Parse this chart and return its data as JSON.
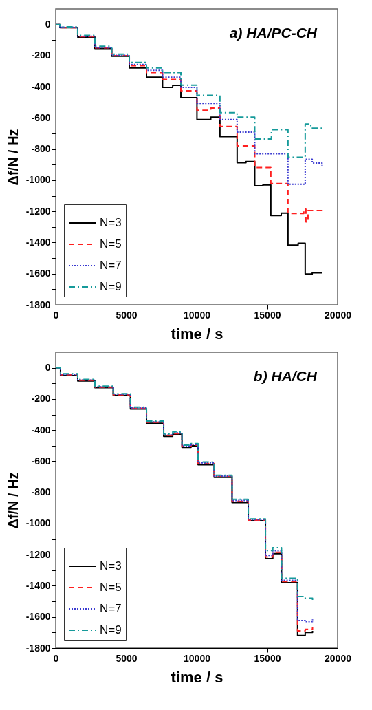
{
  "chart_data": [
    {
      "type": "step",
      "title": "a) HA/PC-CH",
      "xlabel": "time / s",
      "ylabel": "Δf/N / Hz",
      "xlim": [
        0,
        20000
      ],
      "xticks": [
        0,
        {
          "value": 2500,
          "label": null
        },
        5000,
        {
          "value": 7500,
          "label": null
        },
        10000,
        {
          "value": 12500,
          "label": null
        },
        15000,
        {
          "value": 17500,
          "label": null
        },
        20000
      ],
      "ylim": [
        -1800,
        100
      ],
      "yticks": [
        0,
        {
          "value": -100,
          "label": null
        },
        -200,
        {
          "value": -300,
          "label": null
        },
        -400,
        {
          "value": -500,
          "label": null
        },
        -600,
        {
          "value": -700,
          "label": null
        },
        -800,
        {
          "value": -900,
          "label": null
        },
        -1000,
        {
          "value": -1100,
          "label": null
        },
        -1200,
        {
          "value": -1300,
          "label": null
        },
        -1400,
        {
          "value": -1500,
          "label": null
        },
        -1600,
        {
          "value": -1700,
          "label": null
        },
        -1800
      ],
      "grid": false,
      "legend": "bottom left",
      "marker": "none",
      "series": [
        {
          "name": "N=3",
          "color": "#000000",
          "line_style": "solid",
          "x": [
            0,
            300,
            1560,
            2780,
            3970,
            5220,
            6440,
            7580,
            8300,
            8880,
            10020,
            11000,
            11650,
            12870,
            13500,
            14120,
            14700,
            15260,
            16000,
            16480,
            17200,
            17700,
            18200,
            18900
          ],
          "values": [
            0,
            -20,
            -81,
            -154,
            -204,
            -279,
            -338,
            -404,
            -390,
            -470,
            -610,
            -595,
            -720,
            -888,
            -880,
            -1036,
            -1030,
            -1227,
            -1211,
            -1417,
            -1405,
            -1602,
            -1595,
            -1595
          ]
        },
        {
          "name": "N=5",
          "color": "#ff2020",
          "line_style": "dashed",
          "x": [
            0,
            300,
            1560,
            2780,
            3970,
            5220,
            6440,
            7580,
            8880,
            10020,
            11000,
            11650,
            12870,
            14120,
            15260,
            16480,
            17600,
            17750,
            17900,
            18900
          ],
          "values": [
            0,
            -20,
            -78,
            -150,
            -200,
            -265,
            -309,
            -353,
            -426,
            -551,
            -536,
            -654,
            -779,
            -919,
            -1021,
            -1213,
            -1186,
            -1268,
            -1195,
            -1200
          ]
        },
        {
          "name": "N=7",
          "color": "#3a3ad0",
          "line_style": "dotted",
          "x": [
            0,
            300,
            1560,
            2780,
            3970,
            5220,
            6440,
            7580,
            8880,
            10020,
            11650,
            12870,
            14120,
            16480,
            17700,
            18200,
            18900
          ],
          "values": [
            0,
            -18,
            -76,
            -148,
            -198,
            -257,
            -294,
            -338,
            -404,
            -507,
            -610,
            -691,
            -830,
            -1026,
            -866,
            -890,
            -910
          ]
        },
        {
          "name": "N=9",
          "color": "#169a9a",
          "line_style": "dashdot",
          "x": [
            0,
            300,
            1560,
            2780,
            3970,
            5220,
            6440,
            7580,
            8880,
            10020,
            11650,
            12870,
            14120,
            15300,
            16480,
            17700,
            18100,
            18900
          ],
          "values": [
            0,
            -15,
            -70,
            -140,
            -190,
            -243,
            -279,
            -309,
            -389,
            -455,
            -566,
            -595,
            -735,
            -676,
            -852,
            -639,
            -665,
            -676
          ]
        }
      ]
    },
    {
      "type": "step",
      "title": "b) HA/CH",
      "xlabel": "time / s",
      "ylabel": "Δf/N / Hz",
      "xlim": [
        0,
        20000
      ],
      "xticks": [
        0,
        {
          "value": 2500,
          "label": null
        },
        5000,
        {
          "value": 7500,
          "label": null
        },
        10000,
        {
          "value": 12500,
          "label": null
        },
        15000,
        {
          "value": 17500,
          "label": null
        },
        20000
      ],
      "ylim": [
        -1800,
        100
      ],
      "yticks": [
        0,
        {
          "value": -100,
          "label": null
        },
        -200,
        {
          "value": -300,
          "label": null
        },
        -400,
        {
          "value": -500,
          "label": null
        },
        -600,
        {
          "value": -700,
          "label": null
        },
        -800,
        {
          "value": -900,
          "label": null
        },
        -1000,
        {
          "value": -1100,
          "label": null
        },
        -1200,
        {
          "value": -1300,
          "label": null
        },
        -1400,
        {
          "value": -1500,
          "label": null
        },
        -1600,
        {
          "value": -1700,
          "label": null
        },
        -1800
      ],
      "grid": false,
      "legend": "bottom left",
      "marker": "none",
      "x": [
        0,
        340,
        1560,
        2780,
        4080,
        5300,
        6440,
        7660,
        8300,
        8960,
        9600,
        10100,
        11240,
        12510,
        13660,
        14880,
        15400,
        16020,
        17160,
        17700,
        18220
      ],
      "series": [
        {
          "name": "N=3",
          "color": "#000000",
          "line_style": "solid",
          "values": [
            0,
            -50,
            -84,
            -128,
            -177,
            -265,
            -356,
            -440,
            -427,
            -511,
            -501,
            -622,
            -703,
            -865,
            -983,
            -1226,
            -1193,
            -1380,
            -1719,
            -1700,
            -1690
          ]
        },
        {
          "name": "N=5",
          "color": "#ff2020",
          "line_style": "dashed",
          "values": [
            0,
            -45,
            -80,
            -124,
            -173,
            -260,
            -350,
            -434,
            -422,
            -505,
            -496,
            -615,
            -698,
            -858,
            -978,
            -1215,
            -1185,
            -1372,
            -1690,
            -1680,
            -1665
          ]
        },
        {
          "name": "N=7",
          "color": "#3a3ad0",
          "line_style": "dotted",
          "values": [
            0,
            -42,
            -78,
            -122,
            -170,
            -257,
            -347,
            -430,
            -418,
            -502,
            -492,
            -610,
            -695,
            -852,
            -975,
            -1205,
            -1175,
            -1365,
            -1623,
            -1630,
            -1616
          ]
        },
        {
          "name": "N=9",
          "color": "#169a9a",
          "line_style": "dashdot",
          "values": [
            0,
            -38,
            -74,
            -118,
            -166,
            -252,
            -342,
            -425,
            -412,
            -497,
            -487,
            -605,
            -690,
            -845,
            -970,
            -1174,
            -1155,
            -1351,
            -1469,
            -1480,
            -1491
          ]
        }
      ]
    }
  ]
}
